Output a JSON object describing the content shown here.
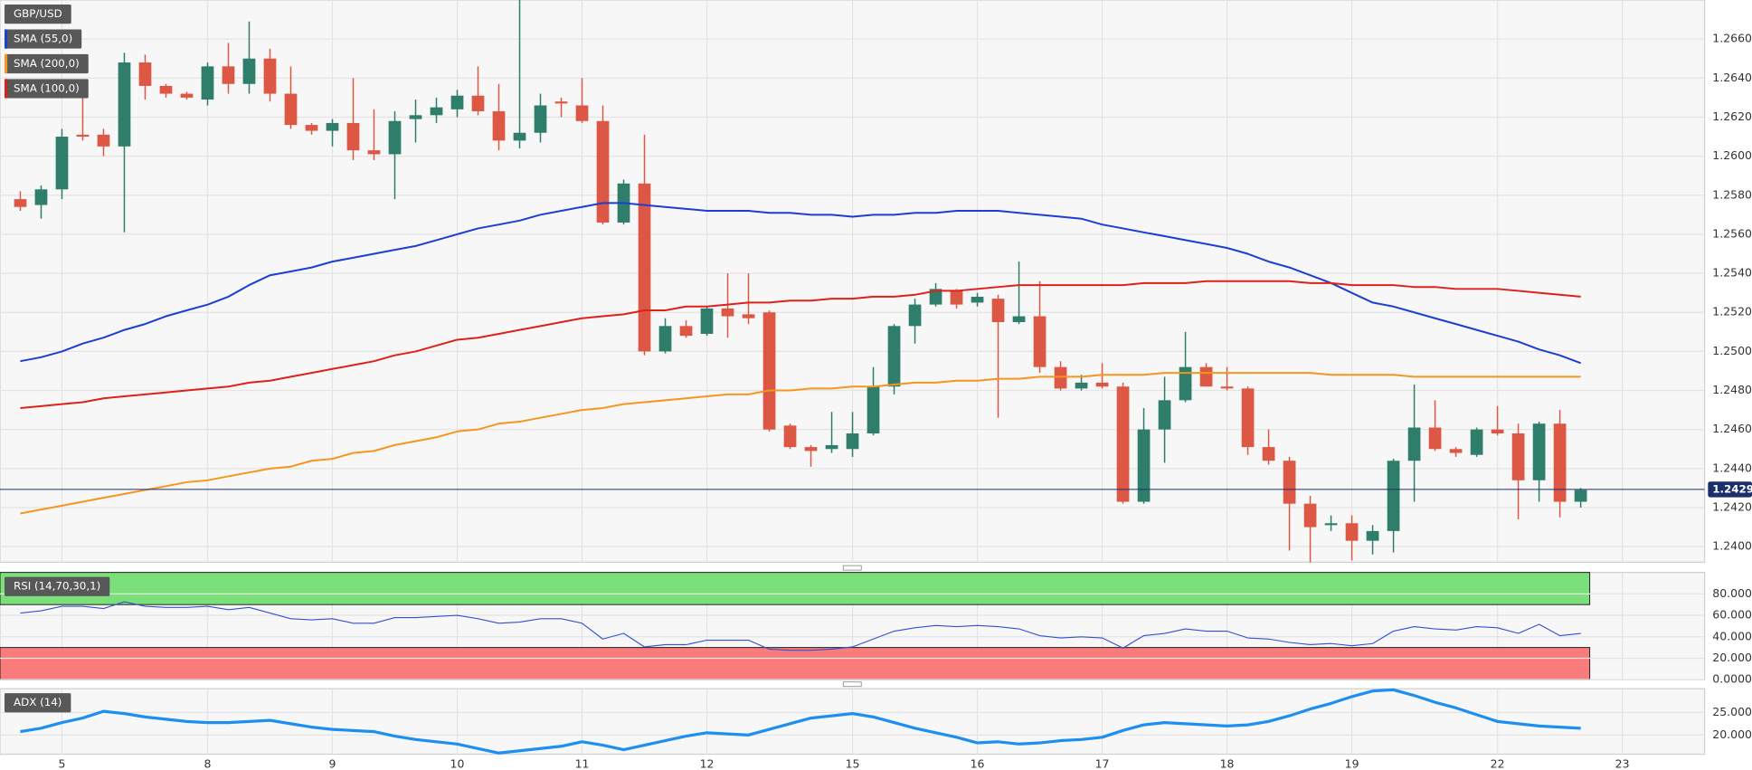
{
  "chart_data": [
    {
      "type": "candlestick",
      "title": "GBP/USD",
      "categories": [
        null,
        null,
        "5",
        null,
        null,
        null,
        null,
        null,
        null,
        "8",
        null,
        null,
        null,
        null,
        null,
        "9",
        null,
        null,
        null,
        null,
        null,
        "10",
        null,
        null,
        null,
        null,
        null,
        "11",
        null,
        null,
        null,
        null,
        null,
        "12",
        null,
        null,
        null,
        null,
        null,
        null,
        "15",
        null,
        null,
        null,
        null,
        null,
        "16",
        null,
        null,
        null,
        null,
        null,
        "17",
        null,
        null,
        null,
        null,
        null,
        "18",
        null,
        null,
        null,
        null,
        null,
        "19",
        null,
        null,
        null,
        null,
        null,
        null,
        "22",
        null,
        null,
        null,
        null,
        null,
        "23"
      ],
      "open": [
        1.2578,
        1.2575,
        1.2583,
        1.2611,
        1.2611,
        1.2605,
        1.2648,
        1.2636,
        1.2632,
        1.2629,
        1.2646,
        1.2637,
        1.265,
        1.2632,
        1.2616,
        1.2613,
        1.2617,
        1.2603,
        1.2601,
        1.2619,
        1.2621,
        1.2624,
        1.2631,
        1.2623,
        1.2608,
        1.2612,
        1.2628,
        1.2626,
        1.2618,
        1.2566,
        1.2586,
        1.25,
        1.2513,
        1.2509,
        1.2522,
        1.2519,
        1.252,
        1.2462,
        1.2451,
        1.245,
        1.245,
        1.2458,
        1.2482,
        1.2513,
        1.2524,
        1.2531,
        1.2525,
        1.2527,
        1.2515,
        1.2518,
        1.2492,
        1.2481,
        1.2484,
        1.2482,
        1.2423,
        1.246,
        1.2475,
        1.2492,
        1.2482,
        1.2481,
        1.2451,
        1.2444,
        1.2422,
        1.2411,
        1.2412,
        1.2403,
        1.2408,
        1.2444,
        1.2461,
        1.245,
        1.2447,
        1.246,
        1.2458,
        1.2434,
        1.2463,
        1.2423,
        null,
        null
      ],
      "high": [
        1.2582,
        1.2585,
        1.2614,
        1.2632,
        1.2614,
        1.2653,
        1.2652,
        1.2637,
        1.2633,
        1.2648,
        1.2658,
        1.2669,
        1.2655,
        1.2646,
        1.2617,
        1.2619,
        1.264,
        1.2624,
        1.2623,
        1.2629,
        1.263,
        1.2634,
        1.2646,
        1.2637,
        1.268,
        1.2632,
        1.263,
        1.264,
        1.2626,
        1.2588,
        1.2611,
        1.2517,
        1.2516,
        1.2523,
        1.254,
        1.254,
        1.2521,
        1.2463,
        1.2452,
        1.2469,
        1.2469,
        1.2492,
        1.2514,
        1.2527,
        1.2535,
        1.2532,
        1.253,
        1.2529,
        1.2546,
        1.2536,
        1.2495,
        1.2488,
        1.2494,
        1.2484,
        1.2471,
        1.2487,
        1.251,
        1.2494,
        1.2492,
        1.2482,
        1.246,
        1.2446,
        1.2426,
        1.2416,
        1.2416,
        1.2411,
        1.2445,
        1.2483,
        1.2475,
        1.2451,
        1.2461,
        1.2472,
        1.2463,
        1.2464,
        1.247,
        1.243,
        null,
        null
      ],
      "low": [
        1.2572,
        1.2568,
        1.2578,
        1.2608,
        1.26,
        1.2561,
        1.2629,
        1.263,
        1.2629,
        1.2626,
        1.2632,
        1.2632,
        1.2628,
        1.2614,
        1.2611,
        1.2605,
        1.2598,
        1.2598,
        1.2578,
        1.2607,
        1.2617,
        1.262,
        1.2621,
        1.2603,
        1.2604,
        1.2607,
        1.262,
        1.2617,
        1.2565,
        1.2565,
        1.2498,
        1.2499,
        1.2507,
        1.2508,
        1.2507,
        1.2514,
        1.2459,
        1.245,
        1.2441,
        1.2448,
        1.2446,
        1.2457,
        1.2478,
        1.2504,
        1.2523,
        1.2522,
        1.2523,
        1.2466,
        1.2514,
        1.2489,
        1.248,
        1.248,
        1.2481,
        1.2422,
        1.2422,
        1.2443,
        1.2474,
        1.2482,
        1.248,
        1.2447,
        1.2442,
        1.2398,
        1.2392,
        1.2408,
        1.2393,
        1.2396,
        1.2397,
        1.2423,
        1.2449,
        1.2446,
        1.2446,
        1.2457,
        1.2414,
        1.2423,
        1.2415,
        1.242,
        null,
        null
      ],
      "close": [
        1.2574,
        1.2583,
        1.261,
        1.261,
        1.2605,
        1.2648,
        1.2636,
        1.2632,
        1.263,
        1.2646,
        1.2637,
        1.265,
        1.2632,
        1.2616,
        1.2613,
        1.2617,
        1.2603,
        1.2601,
        1.2618,
        1.2621,
        1.2625,
        1.2631,
        1.2623,
        1.2608,
        1.2612,
        1.2626,
        1.2627,
        1.2618,
        1.2566,
        1.2586,
        1.25,
        1.2513,
        1.2508,
        1.2522,
        1.2518,
        1.2517,
        1.246,
        1.2451,
        1.2449,
        1.2452,
        1.2458,
        1.2482,
        1.2513,
        1.2524,
        1.2532,
        1.2524,
        1.2528,
        1.2515,
        1.2518,
        1.2492,
        1.2481,
        1.2484,
        1.2482,
        1.2423,
        1.246,
        1.2475,
        1.2492,
        1.2482,
        1.2481,
        1.2451,
        1.2444,
        1.2422,
        1.241,
        1.2412,
        1.2403,
        1.2408,
        1.2444,
        1.2461,
        1.245,
        1.2448,
        1.246,
        1.2458,
        1.2434,
        1.2463,
        1.2423,
        1.2429,
        null,
        null
      ],
      "up_color": "#2f7d6b",
      "down_color": "#dc5845",
      "series": [
        {
          "name": "SMA (55,0)",
          "color": "#1d3fd0",
          "values": [
            1.2495,
            1.2497,
            1.25,
            1.2504,
            1.2507,
            1.2511,
            1.2514,
            1.2518,
            1.2521,
            1.2524,
            1.2528,
            1.2534,
            1.2539,
            1.2541,
            1.2543,
            1.2546,
            1.2548,
            1.255,
            1.2552,
            1.2554,
            1.2557,
            1.256,
            1.2563,
            1.2565,
            1.2567,
            1.257,
            1.2572,
            1.2574,
            1.2576,
            1.2576,
            1.2575,
            1.2574,
            1.2573,
            1.2572,
            1.2572,
            1.2572,
            1.2571,
            1.2571,
            1.257,
            1.257,
            1.2569,
            1.257,
            1.257,
            1.2571,
            1.2571,
            1.2572,
            1.2572,
            1.2572,
            1.2571,
            1.257,
            1.2569,
            1.2568,
            1.2565,
            1.2563,
            1.2561,
            1.2559,
            1.2557,
            1.2555,
            1.2553,
            1.255,
            1.2546,
            1.2543,
            1.2539,
            1.2535,
            1.253,
            1.2525,
            1.2523,
            1.252,
            1.2517,
            1.2514,
            1.2511,
            1.2508,
            1.2505,
            1.2501,
            1.2498,
            1.2494,
            null,
            null
          ]
        },
        {
          "name": "SMA (200,0)",
          "color": "#f5961e",
          "values": [
            1.2417,
            1.2419,
            1.2421,
            1.2423,
            1.2425,
            1.2427,
            1.2429,
            1.2431,
            1.2433,
            1.2434,
            1.2436,
            1.2438,
            1.244,
            1.2441,
            1.2444,
            1.2445,
            1.2448,
            1.2449,
            1.2452,
            1.2454,
            1.2456,
            1.2459,
            1.246,
            1.2463,
            1.2464,
            1.2466,
            1.2468,
            1.247,
            1.2471,
            1.2473,
            1.2474,
            1.2475,
            1.2476,
            1.2477,
            1.2478,
            1.2478,
            1.248,
            1.248,
            1.2481,
            1.2481,
            1.2482,
            1.2482,
            1.2483,
            1.2484,
            1.2484,
            1.2485,
            1.2485,
            1.2486,
            1.2486,
            1.2487,
            1.2487,
            1.2487,
            1.2488,
            1.2488,
            1.2488,
            1.2489,
            1.2489,
            1.2489,
            1.2489,
            1.2489,
            1.2489,
            1.2489,
            1.2489,
            1.2488,
            1.2488,
            1.2488,
            1.2488,
            1.2487,
            1.2487,
            1.2487,
            1.2487,
            1.2487,
            1.2487,
            1.2487,
            1.2487,
            1.2487,
            null,
            null
          ]
        },
        {
          "name": "SMA (100,0)",
          "color": "#e0201b",
          "values": [
            1.2471,
            1.2472,
            1.2473,
            1.2474,
            1.2476,
            1.2477,
            1.2478,
            1.2479,
            1.248,
            1.2481,
            1.2482,
            1.2484,
            1.2485,
            1.2487,
            1.2489,
            1.2491,
            1.2493,
            1.2495,
            1.2498,
            1.25,
            1.2503,
            1.2506,
            1.2507,
            1.2509,
            1.2511,
            1.2513,
            1.2515,
            1.2517,
            1.2518,
            1.2519,
            1.2521,
            1.2521,
            1.2523,
            1.2523,
            1.2524,
            1.2525,
            1.2525,
            1.2526,
            1.2526,
            1.2527,
            1.2527,
            1.2528,
            1.2528,
            1.2529,
            1.2531,
            1.2531,
            1.2532,
            1.2533,
            1.2534,
            1.2534,
            1.2534,
            1.2534,
            1.2534,
            1.2534,
            1.2535,
            1.2535,
            1.2535,
            1.2536,
            1.2536,
            1.2536,
            1.2536,
            1.2536,
            1.2535,
            1.2535,
            1.2534,
            1.2534,
            1.2534,
            1.2533,
            1.2533,
            1.2532,
            1.2532,
            1.2532,
            1.2531,
            1.253,
            1.2529,
            1.2528,
            null,
            null
          ]
        }
      ],
      "ylim": [
        1.2392,
        1.268
      ],
      "yticks": [
        {
          "value": 1.24,
          "label": "1.2400"
        },
        {
          "value": 1.242,
          "label": "1.2420"
        },
        {
          "value": 1.244,
          "label": "1.2440"
        },
        {
          "value": 1.246,
          "label": "1.2460"
        },
        {
          "value": 1.248,
          "label": "1.2480"
        },
        {
          "value": 1.25,
          "label": "1.2500"
        },
        {
          "value": 1.252,
          "label": "1.2520"
        },
        {
          "value": 1.254,
          "label": "1.2540"
        },
        {
          "value": 1.256,
          "label": "1.2560"
        },
        {
          "value": 1.258,
          "label": "1.2580"
        },
        {
          "value": 1.26,
          "label": "1.2600"
        },
        {
          "value": 1.262,
          "label": "1.2620"
        },
        {
          "value": 1.264,
          "label": "1.2640"
        },
        {
          "value": 1.266,
          "label": "1.2660"
        }
      ],
      "last_price": 1.24293,
      "last_price_color": "#1c2f6b",
      "grid": true
    },
    {
      "type": "line",
      "title": "RSI (14,70,30,1)",
      "color": "#3450d0",
      "values": [
        62.1,
        64.2,
        68.4,
        68.4,
        66.3,
        72.6,
        68.4,
        67.4,
        67.4,
        68.4,
        65.3,
        67.4,
        62.1,
        56.8,
        55.8,
        56.8,
        52.6,
        52.6,
        57.9,
        57.9,
        58.9,
        60.0,
        56.8,
        52.6,
        53.7,
        56.8,
        56.8,
        52.6,
        37.9,
        43.2,
        30.5,
        32.6,
        32.6,
        36.8,
        36.8,
        36.8,
        28.4,
        27.4,
        27.4,
        28.4,
        30.5,
        37.9,
        45.3,
        48.4,
        50.5,
        49.5,
        50.5,
        49.5,
        47.4,
        41.1,
        38.9,
        40.0,
        38.9,
        29.5,
        41.1,
        43.2,
        47.4,
        45.3,
        45.3,
        38.9,
        37.9,
        34.7,
        32.6,
        33.7,
        31.6,
        33.7,
        45.3,
        49.5,
        47.4,
        46.3,
        49.5,
        48.4,
        43.2,
        51.6,
        41.1,
        43.2,
        null,
        null
      ],
      "bands": [
        {
          "from": 70,
          "to": 100,
          "color": "#7ce07a"
        },
        {
          "from": 0,
          "to": 30,
          "color": "#f97b7b"
        }
      ],
      "ylim": [
        0,
        100
      ],
      "yticks": [
        {
          "value": 0,
          "label": "0.0000"
        },
        {
          "value": 20,
          "label": "20.0000"
        },
        {
          "value": 40,
          "label": "40.0000"
        },
        {
          "value": 60,
          "label": "60.0000"
        },
        {
          "value": 80,
          "label": "80.0000"
        }
      ],
      "grid": true
    },
    {
      "type": "line",
      "title": "ADX (14)",
      "color": "#1e8ff0",
      "values": [
        20.75,
        21.5,
        22.75,
        23.75,
        25.25,
        24.75,
        24,
        23.5,
        23,
        22.75,
        22.75,
        23,
        23.25,
        22.5,
        21.75,
        21.25,
        21,
        20.75,
        19.75,
        19,
        18.5,
        18,
        17,
        16,
        16.5,
        17,
        17.5,
        18.5,
        17.75,
        16.75,
        17.75,
        18.75,
        19.75,
        20.5,
        20.25,
        20,
        21.25,
        22.5,
        23.75,
        24.25,
        24.75,
        24,
        22.75,
        21.5,
        20.5,
        19.5,
        18.25,
        18.5,
        18,
        18.25,
        18.75,
        19,
        19.5,
        21,
        22.25,
        22.75,
        22.5,
        22.25,
        22,
        22.25,
        23,
        24.25,
        25.75,
        27,
        28.5,
        29.75,
        30,
        28.75,
        27.25,
        26,
        24.5,
        23,
        22.5,
        22,
        21.75,
        21.5,
        null,
        null
      ],
      "ylim": [
        15.75,
        30.25
      ],
      "yticks": [
        {
          "value": 20,
          "label": "20.0000"
        },
        {
          "value": 25,
          "label": "25.0000"
        }
      ],
      "grid": true
    }
  ]
}
